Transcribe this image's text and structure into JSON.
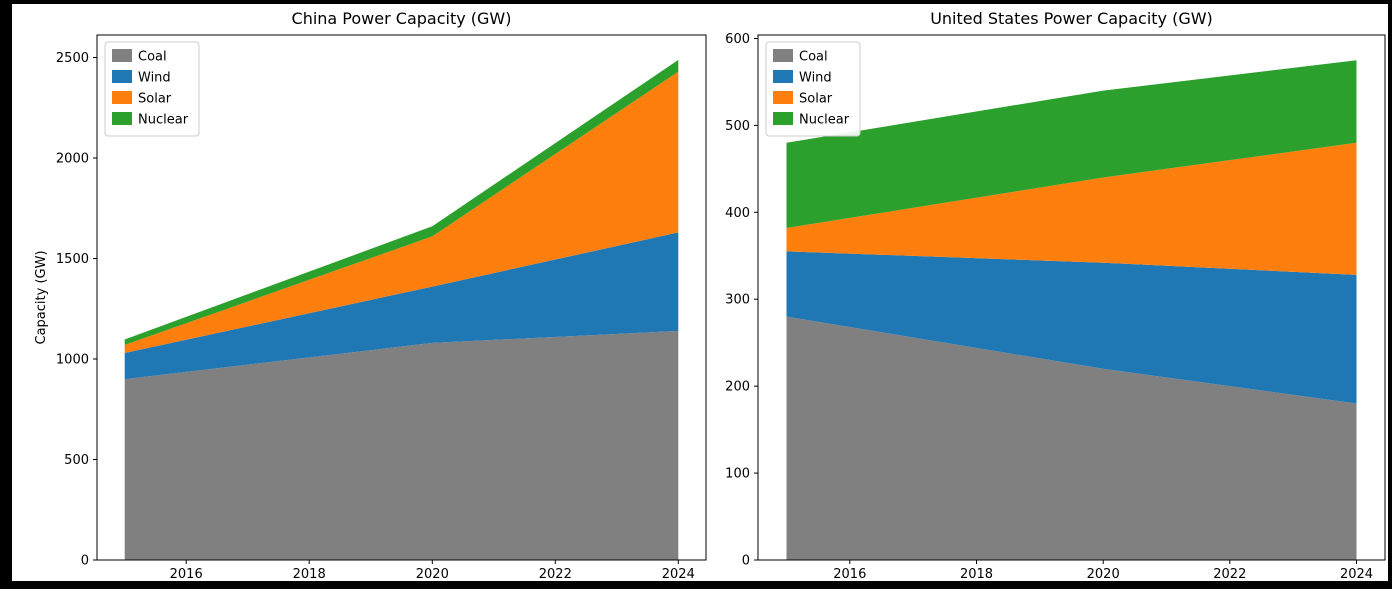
{
  "figure": {
    "outer_background": "#000000",
    "facecolor": "#ffffff",
    "spine_color": "#000000",
    "legend_border_color": "#cccccc",
    "legend_background": "#ffffff"
  },
  "chart_data": [
    {
      "type": "area",
      "stacked": true,
      "title": "China Power Capacity (GW)",
      "xlabel": "",
      "ylabel": "Capacity (GW)",
      "x": [
        2015,
        2020,
        2024
      ],
      "x_ticks": [
        2016,
        2018,
        2020,
        2022,
        2024
      ],
      "xlim": [
        2014.55,
        2024.45
      ],
      "y_ticks": [
        0,
        500,
        1000,
        1500,
        2000,
        2500
      ],
      "ylim": [
        0,
        2612
      ],
      "grid": false,
      "legend_position": "upper left",
      "series": [
        {
          "name": "Coal",
          "color": "#808080",
          "values": [
            900,
            1080,
            1140
          ]
        },
        {
          "name": "Wind",
          "color": "#1f77b4",
          "values": [
            130,
            280,
            490
          ]
        },
        {
          "name": "Solar",
          "color": "#ff7f0e",
          "values": [
            40,
            250,
            800
          ]
        },
        {
          "name": "Nuclear",
          "color": "#2ca02c",
          "values": [
            27,
            50,
            58
          ]
        }
      ]
    },
    {
      "type": "area",
      "stacked": true,
      "title": "United States Power Capacity (GW)",
      "xlabel": "",
      "ylabel": "",
      "x": [
        2015,
        2020,
        2024
      ],
      "x_ticks": [
        2016,
        2018,
        2020,
        2022,
        2024
      ],
      "xlim": [
        2014.55,
        2024.45
      ],
      "y_ticks": [
        0,
        100,
        200,
        300,
        400,
        500,
        600
      ],
      "ylim": [
        0,
        604
      ],
      "grid": false,
      "legend_position": "upper left",
      "series": [
        {
          "name": "Coal",
          "color": "#808080",
          "values": [
            280,
            220,
            180
          ]
        },
        {
          "name": "Wind",
          "color": "#1f77b4",
          "values": [
            75,
            122,
            148
          ]
        },
        {
          "name": "Solar",
          "color": "#ff7f0e",
          "values": [
            27,
            98,
            152
          ]
        },
        {
          "name": "Nuclear",
          "color": "#2ca02c",
          "values": [
            98,
            100,
            95
          ]
        }
      ]
    }
  ]
}
